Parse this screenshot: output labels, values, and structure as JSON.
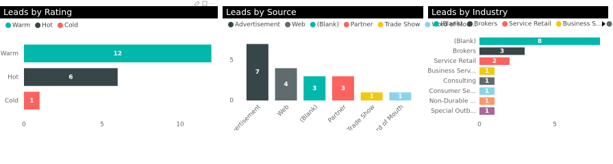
{
  "chart_data": [
    {
      "type": "bar",
      "orientation": "horizontal",
      "title": "Leads by Rating",
      "legend": [
        "Warm",
        "Hot",
        "Cold"
      ],
      "categories": [
        "Warm",
        "Hot",
        "Cold"
      ],
      "values": [
        12,
        6,
        1
      ],
      "colors": [
        "#01b8aa",
        "#374649",
        "#fd625e"
      ],
      "xlim": [
        0,
        12
      ],
      "xticks": [
        0,
        5,
        10
      ]
    },
    {
      "type": "bar",
      "orientation": "vertical",
      "title": "Leads by Source",
      "legend": [
        "Advertisement",
        "Web",
        "(Blank)",
        "Partner",
        "Trade Show",
        "Word of Mou..."
      ],
      "categories": [
        "Advertisement",
        "Web",
        "(Blank)",
        "Partner",
        "Trade Show",
        "Word of Mouth"
      ],
      "values": [
        7,
        4,
        3,
        3,
        1,
        1
      ],
      "colors": [
        "#374649",
        "#5f6b6d",
        "#01b8aa",
        "#fd625e",
        "#f2c80f",
        "#8ad4eb"
      ],
      "ylim": [
        0,
        7.5
      ],
      "yticks": [
        0,
        5
      ]
    },
    {
      "type": "bar",
      "orientation": "horizontal",
      "title": "Leads by Industry",
      "legend": [
        "(Blank)",
        "Brokers",
        "Service Retail",
        "Business S...",
        "Consulting"
      ],
      "categories": [
        "(Blank)",
        "Brokers",
        "Service Retail",
        "Business Serv...",
        "Consulting",
        "Consumer Se...",
        "Non-Durable ...",
        "Special Outb..."
      ],
      "values": [
        8,
        3,
        2,
        1,
        1,
        1,
        1,
        1
      ],
      "colors": [
        "#01b8aa",
        "#374649",
        "#fd625e",
        "#f2c80f",
        "#5f6b6d",
        "#8ad4eb",
        "#fe9666",
        "#a66999"
      ],
      "xlim": [
        0,
        8
      ],
      "xticks": [
        0,
        5
      ]
    }
  ]
}
